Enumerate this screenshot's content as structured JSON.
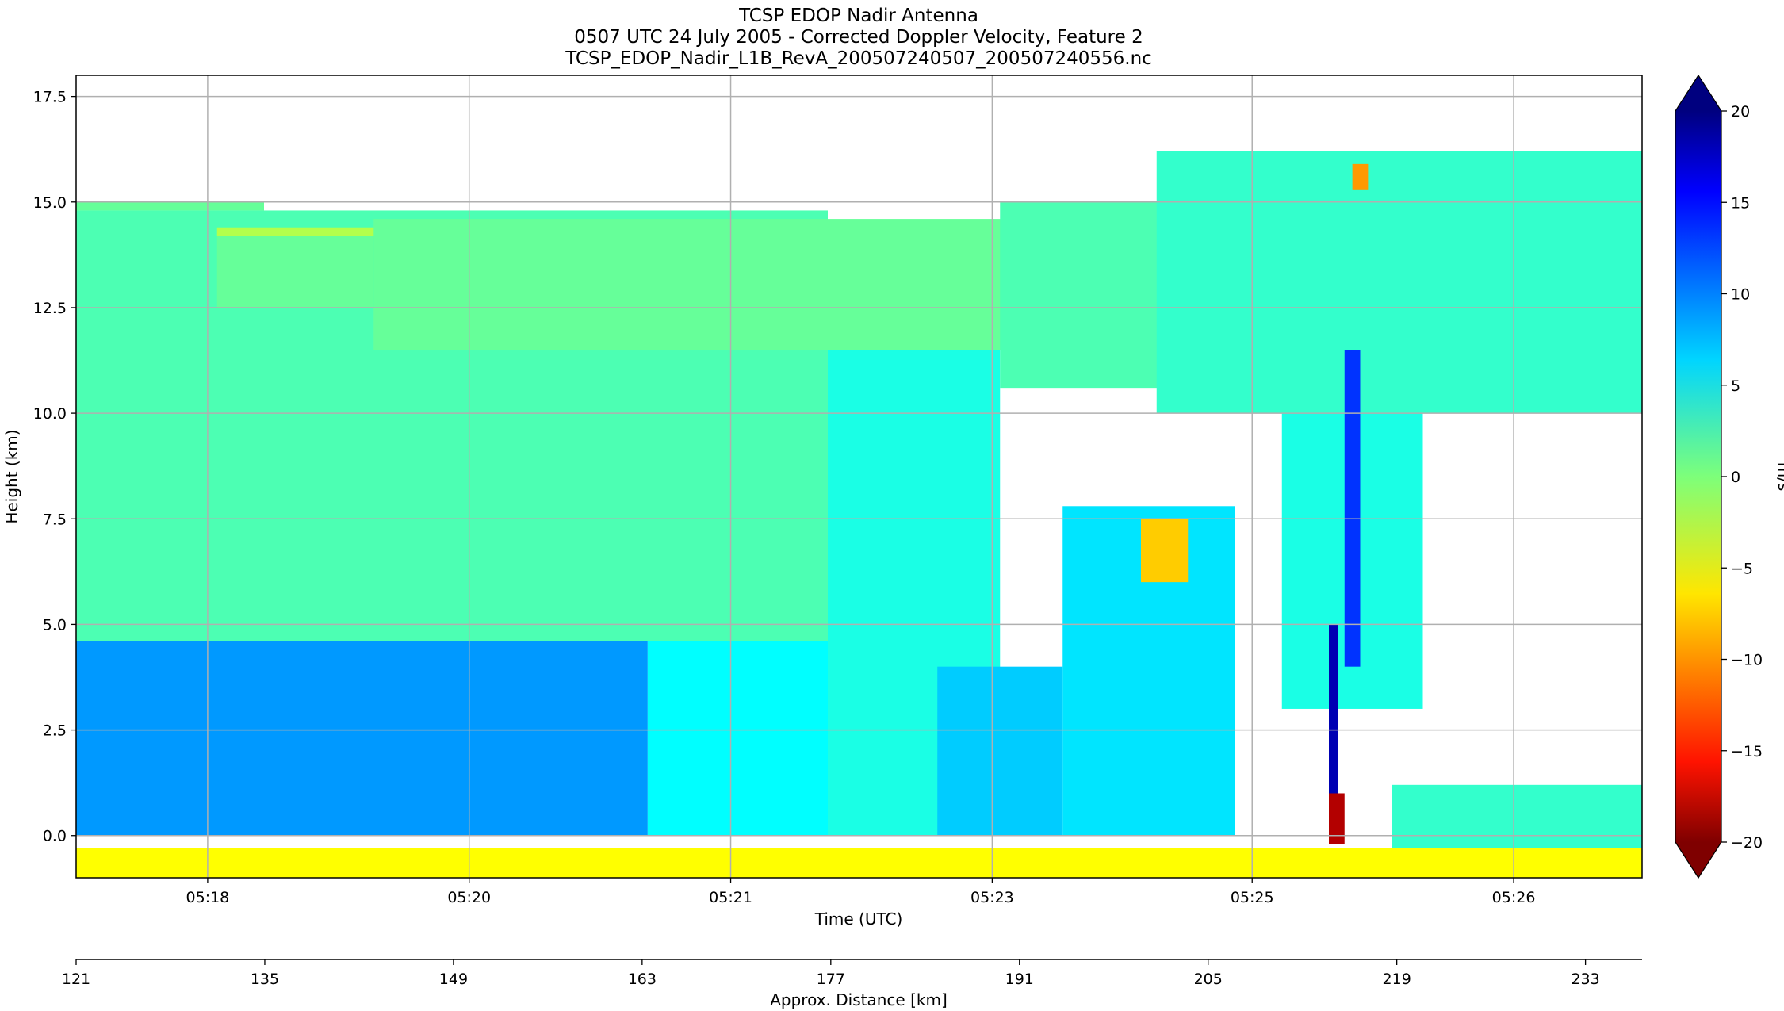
{
  "chart_data": {
    "type": "heatmap",
    "title_lines": [
      "TCSP EDOP Nadir Antenna",
      "0507 UTC 24 July 2005 - Corrected Doppler Velocity, Feature 2",
      "TCSP_EDOP_Nadir_L1B_RevA_200507240507_200507240556.nc"
    ],
    "xlabel": "Time (UTC)",
    "ylabel": "Height (km)",
    "x2label": "Approx. Distance [km]",
    "colorbar_label": "m/s",
    "xlim": [
      0,
      100
    ],
    "ylim": [
      -1.0,
      18.0
    ],
    "clim": [
      -20,
      20
    ],
    "colormap": "jet_r",
    "grid": true,
    "colorbar_extend": "both",
    "x_ticks": [
      {
        "value": 8.4,
        "label": "05:18"
      },
      {
        "value": 25.1,
        "label": "05:20"
      },
      {
        "value": 41.8,
        "label": "05:21"
      },
      {
        "value": 58.5,
        "label": "05:23"
      },
      {
        "value": 75.1,
        "label": "05:25"
      },
      {
        "value": 91.8,
        "label": "05:26"
      }
    ],
    "y_ticks": [
      {
        "value": 0.0,
        "label": "0.0"
      },
      {
        "value": 2.5,
        "label": "2.5"
      },
      {
        "value": 5.0,
        "label": "5.0"
      },
      {
        "value": 7.5,
        "label": "7.5"
      },
      {
        "value": 10.0,
        "label": "10.0"
      },
      {
        "value": 12.5,
        "label": "12.5"
      },
      {
        "value": 15.0,
        "label": "15.0"
      },
      {
        "value": 17.5,
        "label": "17.5"
      }
    ],
    "distance_ticks": [
      {
        "value": 121,
        "label": "121"
      },
      {
        "value": 135,
        "label": "135"
      },
      {
        "value": 149,
        "label": "149"
      },
      {
        "value": 163,
        "label": "163"
      },
      {
        "value": 177,
        "label": "177"
      },
      {
        "value": 191,
        "label": "191"
      },
      {
        "value": 205,
        "label": "205"
      },
      {
        "value": 219,
        "label": "219"
      },
      {
        "value": 233,
        "label": "233"
      }
    ],
    "distance_range": [
      121,
      237.2
    ],
    "colorbar_ticks": [
      {
        "value": 20,
        "label": "20"
      },
      {
        "value": 15,
        "label": "15"
      },
      {
        "value": 10,
        "label": "10"
      },
      {
        "value": 5,
        "label": "5"
      },
      {
        "value": 0,
        "label": "0"
      },
      {
        "value": -5,
        "label": "−5"
      },
      {
        "value": -10,
        "label": "−10"
      },
      {
        "value": -15,
        "label": "−15"
      },
      {
        "value": -20,
        "label": "−20"
      }
    ],
    "regions": [
      {
        "x": [
          0,
          100
        ],
        "y": [
          -1.0,
          -0.3
        ],
        "value": -5
      },
      {
        "x": [
          0,
          36.5
        ],
        "y": [
          0,
          4.6
        ],
        "value": 9
      },
      {
        "x": [
          0,
          48
        ],
        "y": [
          4.6,
          14.8
        ],
        "value": 2
      },
      {
        "x": [
          0,
          12
        ],
        "y": [
          14.8,
          15.0
        ],
        "value": 1
      },
      {
        "x": [
          9,
          36
        ],
        "y": [
          14.2,
          14.4
        ],
        "value": -2
      },
      {
        "x": [
          9,
          19
        ],
        "y": [
          12.5,
          14.2
        ],
        "value": 1
      },
      {
        "x": [
          19,
          60
        ],
        "y": [
          11.5,
          14.6
        ],
        "value": 1
      },
      {
        "x": [
          48,
          59
        ],
        "y": [
          0,
          11.5
        ],
        "value": 4
      },
      {
        "x": [
          36.5,
          48
        ],
        "y": [
          0,
          4.6
        ],
        "value": 5
      },
      {
        "x": [
          59,
          74
        ],
        "y": [
          10.6,
          15.0
        ],
        "value": 2
      },
      {
        "x": [
          63,
          74
        ],
        "y": [
          0,
          7.8
        ],
        "value": 6
      },
      {
        "x": [
          68,
          71
        ],
        "y": [
          6.0,
          7.5
        ],
        "value": -7
      },
      {
        "x": [
          55,
          63
        ],
        "y": [
          0,
          4.0
        ],
        "value": 7
      },
      {
        "x": [
          69,
          100
        ],
        "y": [
          10.0,
          16.2
        ],
        "value": 3
      },
      {
        "x": [
          77,
          86
        ],
        "y": [
          3.0,
          10.0
        ],
        "value": 4
      },
      {
        "x": [
          81,
          82
        ],
        "y": [
          4.0,
          11.5
        ],
        "value": 13
      },
      {
        "x": [
          80,
          80.6
        ],
        "y": [
          0,
          5.0
        ],
        "value": 18
      },
      {
        "x": [
          80,
          81
        ],
        "y": [
          -0.2,
          1.0
        ],
        "value": -18
      },
      {
        "x": [
          84,
          100
        ],
        "y": [
          -0.3,
          1.2
        ],
        "value": 3
      },
      {
        "x": [
          81.5,
          82.5
        ],
        "y": [
          15.3,
          15.9
        ],
        "value": -9
      }
    ]
  }
}
